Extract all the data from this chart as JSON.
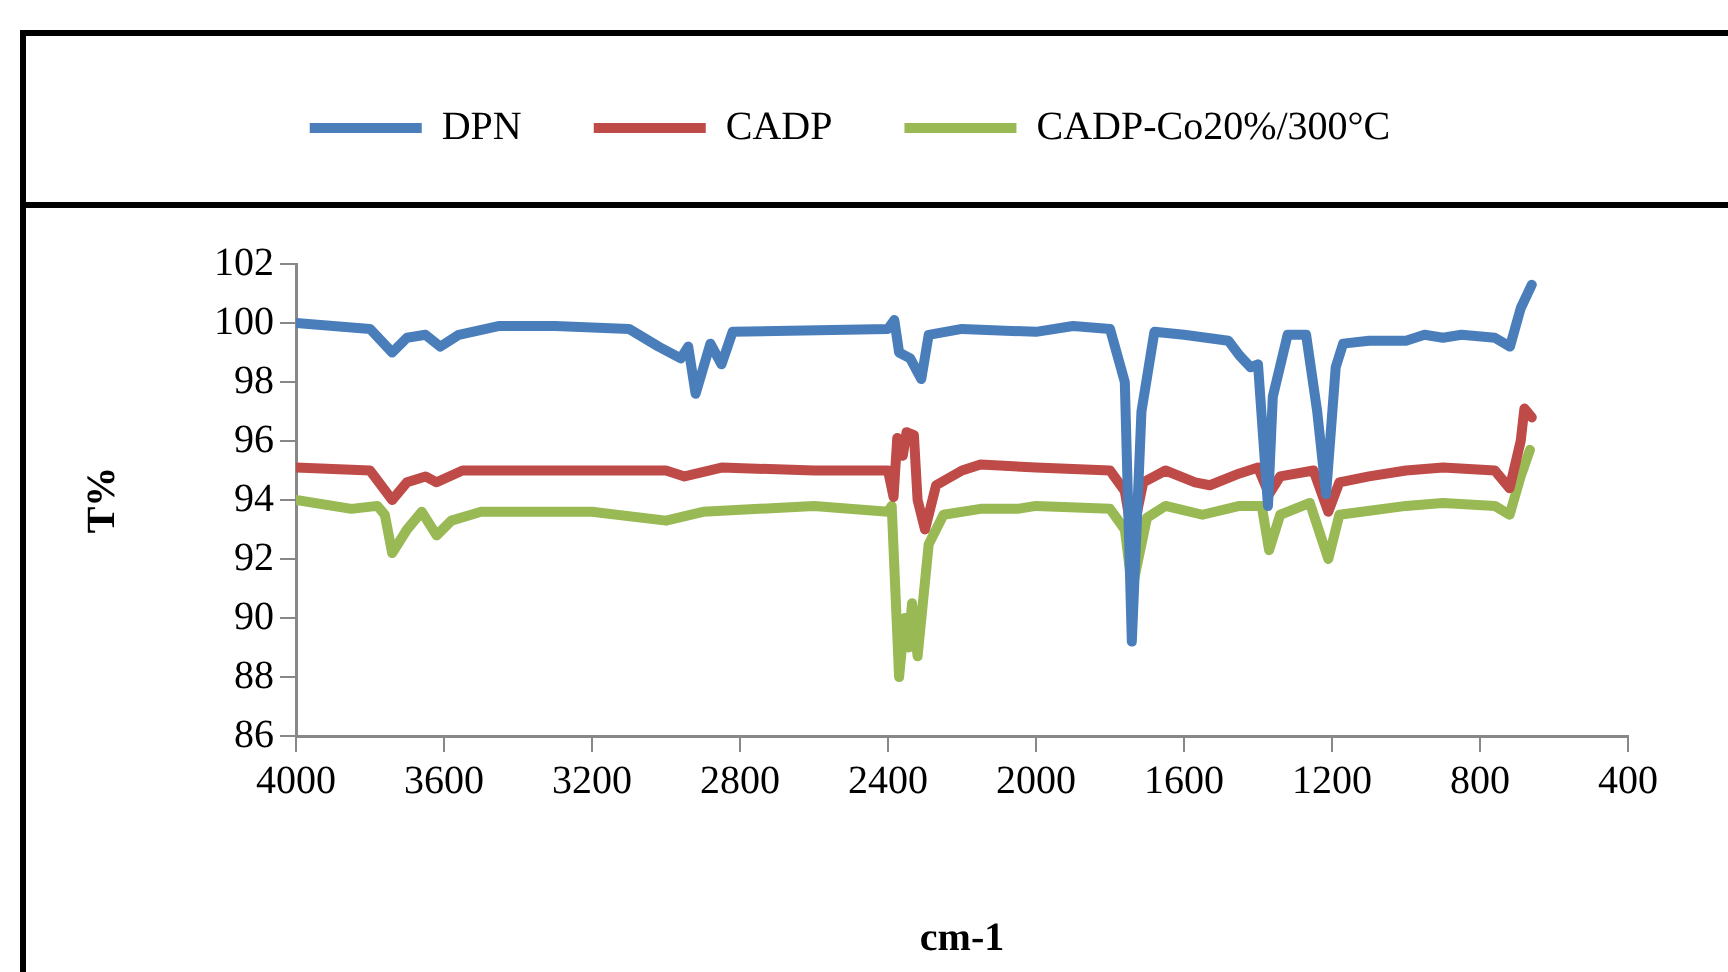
{
  "chart_data": {
    "type": "line",
    "xlabel": "cm-1",
    "ylabel": "T%",
    "xlim": [
      4000,
      400
    ],
    "xticks": [
      4000,
      3600,
      3200,
      2800,
      2400,
      2000,
      1600,
      1200,
      800,
      400
    ],
    "ylim": [
      86,
      102
    ],
    "yticks": [
      86,
      88,
      90,
      92,
      94,
      96,
      98,
      100,
      102
    ],
    "grid": false,
    "legend": "top",
    "marker": "none",
    "line_style": "solid",
    "series": [
      {
        "name": "DPN",
        "color": "#4a7ebb",
        "x": [
          4000,
          3800,
          3740,
          3700,
          3650,
          3610,
          3560,
          3450,
          3300,
          3100,
          3020,
          2960,
          2940,
          2920,
          2880,
          2850,
          2820,
          2400,
          2383,
          2370,
          2340,
          2310,
          2290,
          2200,
          2000,
          1900,
          1800,
          1760,
          1741,
          1715,
          1680,
          1600,
          1480,
          1450,
          1420,
          1400,
          1373,
          1360,
          1320,
          1270,
          1240,
          1216,
          1190,
          1170,
          1100,
          1000,
          950,
          900,
          850,
          760,
          719,
          690,
          660
        ],
        "values": [
          100,
          99.8,
          99,
          99.5,
          99.6,
          99.2,
          99.6,
          99.9,
          99.9,
          99.8,
          99.2,
          98.8,
          99.2,
          97.6,
          99.3,
          98.6,
          99.7,
          99.8,
          100.1,
          99,
          98.8,
          98.1,
          99.6,
          99.8,
          99.7,
          99.9,
          99.8,
          98,
          89.2,
          97,
          99.7,
          99.6,
          99.4,
          98.9,
          98.5,
          98.6,
          93.8,
          97.5,
          99.6,
          99.6,
          97,
          94.2,
          98.5,
          99.3,
          99.4,
          99.4,
          99.6,
          99.5,
          99.6,
          99.5,
          99.2,
          100.5,
          101.3
        ]
      },
      {
        "name": "CADP",
        "color": "#be4b48",
        "x": [
          4000,
          3800,
          3740,
          3700,
          3650,
          3620,
          3550,
          3000,
          2950,
          2850,
          2600,
          2400,
          2385,
          2375,
          2360,
          2350,
          2330,
          2320,
          2300,
          2270,
          2200,
          2150,
          2000,
          1800,
          1760,
          1740,
          1710,
          1650,
          1570,
          1530,
          1450,
          1400,
          1370,
          1340,
          1250,
          1210,
          1180,
          1100,
          1000,
          900,
          760,
          720,
          690,
          680,
          660
        ],
        "values": [
          95.1,
          95,
          94,
          94.6,
          94.8,
          94.6,
          95,
          95,
          94.8,
          95.1,
          95,
          95,
          94.1,
          96.1,
          95.5,
          96.3,
          96.2,
          94,
          93,
          94.5,
          95,
          95.2,
          95.1,
          95,
          94.3,
          92.8,
          94.6,
          95,
          94.6,
          94.5,
          94.9,
          95.1,
          94.2,
          94.8,
          95,
          93.6,
          94.6,
          94.8,
          95,
          95.1,
          95,
          94.4,
          96,
          97.1,
          96.8
        ]
      },
      {
        "name": "CADP-Co20%/300°C",
        "color": "#98b954",
        "x": [
          4000,
          3850,
          3780,
          3760,
          3740,
          3700,
          3660,
          3620,
          3580,
          3500,
          3200,
          3000,
          2900,
          2600,
          2400,
          2390,
          2370,
          2355,
          2345,
          2335,
          2320,
          2290,
          2250,
          2150,
          2050,
          2000,
          1800,
          1760,
          1740,
          1700,
          1650,
          1550,
          1450,
          1390,
          1370,
          1340,
          1260,
          1210,
          1180,
          1000,
          900,
          760,
          720,
          690,
          665
        ],
        "values": [
          94,
          93.7,
          93.8,
          93.5,
          92.2,
          93,
          93.6,
          92.8,
          93.3,
          93.6,
          93.6,
          93.3,
          93.6,
          93.8,
          93.6,
          93.8,
          88,
          90,
          89,
          90.5,
          88.7,
          92.5,
          93.5,
          93.7,
          93.7,
          93.8,
          93.7,
          93,
          91,
          93.4,
          93.8,
          93.5,
          93.8,
          93.8,
          92.3,
          93.5,
          93.9,
          92,
          93.5,
          93.8,
          93.9,
          93.8,
          93.5,
          94.8,
          95.7
        ]
      }
    ]
  }
}
